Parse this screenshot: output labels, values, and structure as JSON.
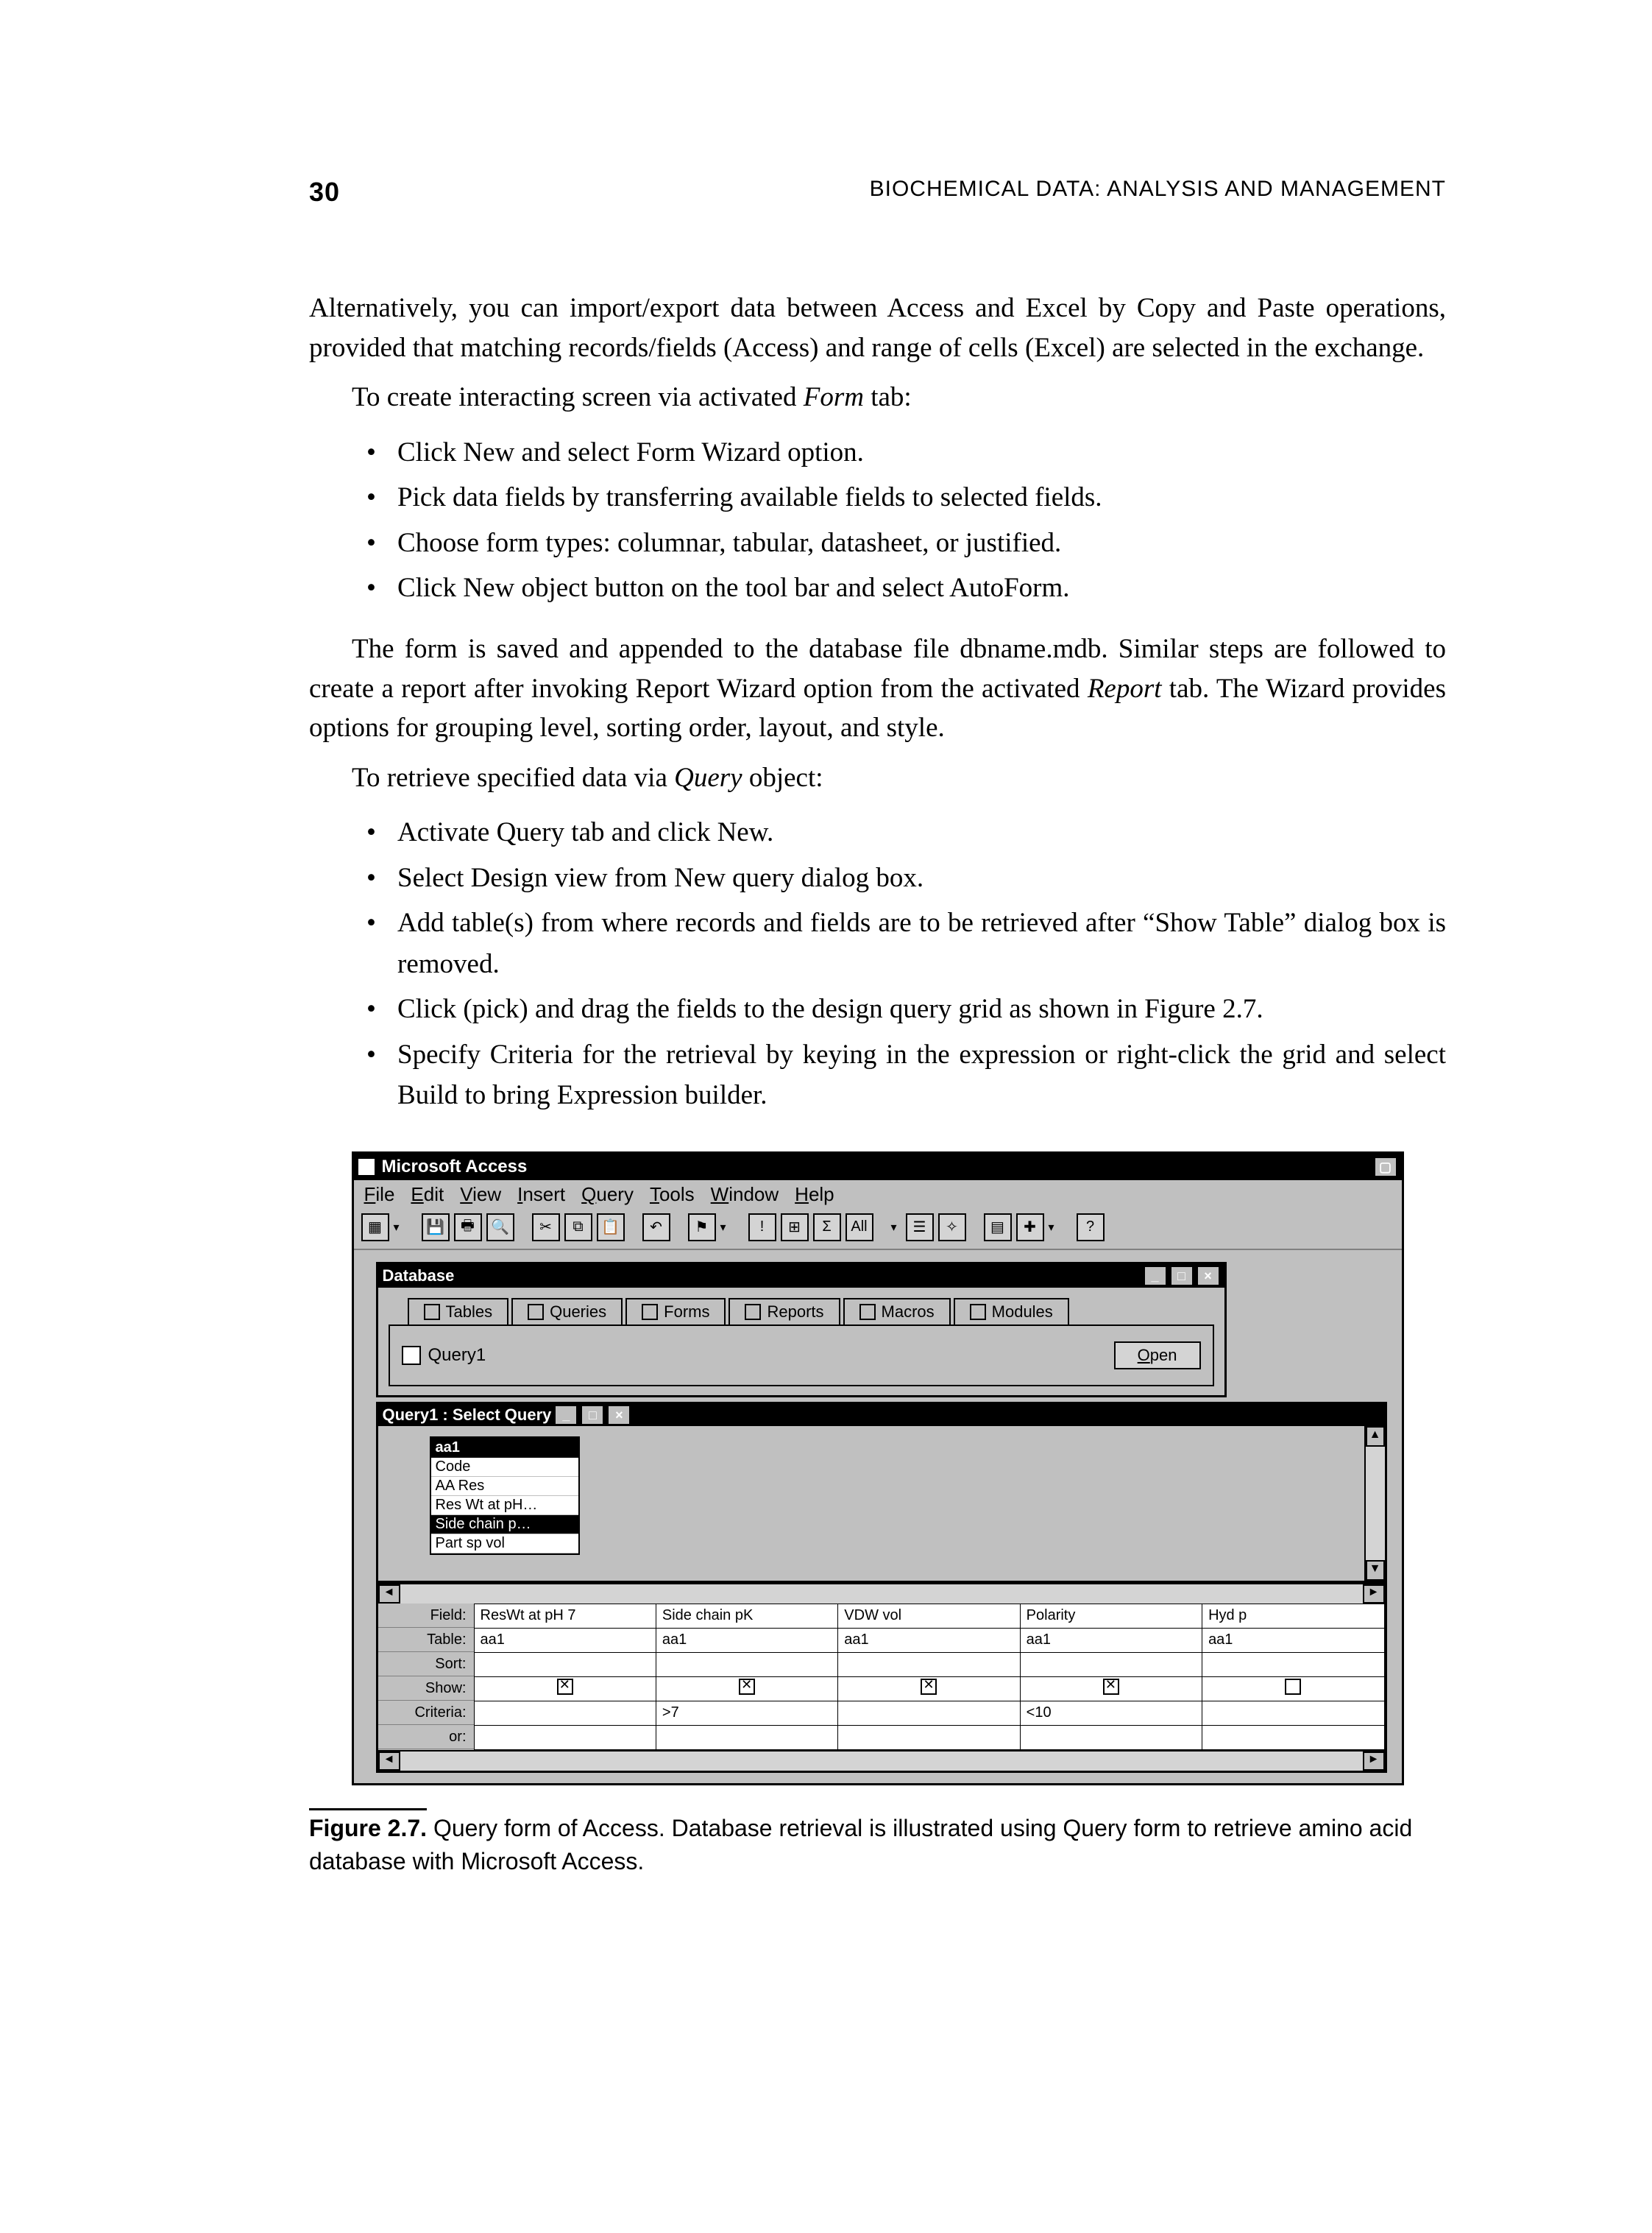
{
  "page_number": "30",
  "running_title": "BIOCHEMICAL DATA: ANALYSIS AND MANAGEMENT",
  "para1": "Alternatively, you can import/export data between Access and Excel by Copy and Paste operations, provided that matching records/fields (Access) and range of cells (Excel) are selected in the exchange.",
  "para2_lead": "To create interacting screen via activated ",
  "para2_term": "Form",
  "para2_tail": " tab:",
  "bullets_form": [
    "Click New and select Form Wizard option.",
    "Pick data fields by transferring available fields to selected fields.",
    "Choose form types: columnar, tabular, datasheet, or justified.",
    "Click New object button on the tool bar and select AutoForm."
  ],
  "para3": "The form is saved and appended to the database file dbname.mdb. Similar steps are followed to create a report after invoking Report Wizard option from the activated ",
  "para3_term": "Report",
  "para3_tail": " tab. The Wizard provides options for grouping level, sorting order, layout, and style.",
  "para4_lead": "To retrieve specified data via ",
  "para4_term": "Query",
  "para4_tail": " object:",
  "bullets_query": [
    "Activate Query tab and click New.",
    "Select Design view from New query dialog box.",
    "Add table(s) from where records and fields are to be retrieved after “Show Table” dialog box is removed.",
    "Click (pick) and drag the fields to the design query grid as shown in Figure 2.7.",
    "Specify Criteria for the retrieval by keying in the expression or right-click the grid and select Build to bring Expression builder."
  ],
  "screenshot": {
    "app_title": "Microsoft Access",
    "menus": [
      "File",
      "Edit",
      "View",
      "Insert",
      "Query",
      "Tools",
      "Window",
      "Help"
    ],
    "db_window_title": "Database",
    "tabs": [
      "Tables",
      "Queries",
      "Forms",
      "Reports",
      "Macros",
      "Modules"
    ],
    "query_item": "Query1",
    "open_button": "Open",
    "qd_title": "Query1 : Select Query",
    "field_list_title": "aa1",
    "field_list_items": [
      "Code",
      "AA Res",
      "Res Wt at pH…",
      "Side chain p…",
      "Part sp vol"
    ],
    "selected_field_index": 3,
    "grid_row_labels": [
      "Field:",
      "Table:",
      "Sort:",
      "Show:",
      "Criteria:",
      "or:"
    ],
    "grid_columns": [
      {
        "field": "ResWt at pH 7",
        "table": "aa1",
        "show": true,
        "criteria": ""
      },
      {
        "field": "Side chain pK",
        "table": "aa1",
        "show": true,
        "criteria": ">7"
      },
      {
        "field": "VDW vol",
        "table": "aa1",
        "show": true,
        "criteria": ""
      },
      {
        "field": "Polarity",
        "table": "aa1",
        "show": true,
        "criteria": "<10"
      },
      {
        "field": "Hyd p",
        "table": "aa1",
        "show": false,
        "criteria": ""
      }
    ]
  },
  "figure_label": "Figure 2.7.",
  "figure_caption": "Query form of Access. Database retrieval is illustrated using Query form to retrieve amino acid database with Microsoft Access.",
  "colors": {
    "text": "#000000",
    "background": "#ffffff",
    "ui_gray": "#c0c0c0",
    "ui_dark": "#000000"
  }
}
